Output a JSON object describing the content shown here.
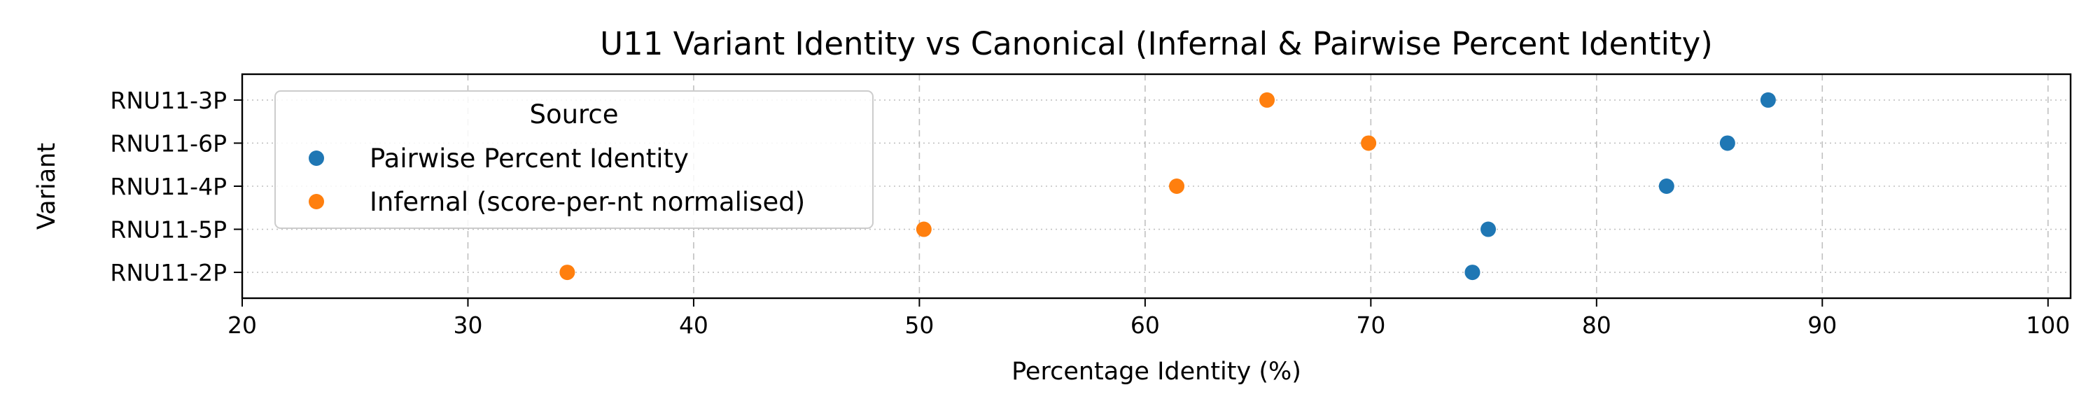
{
  "chart_data": {
    "type": "scatter",
    "title": "U11 Variant Identity vs Canonical (Infernal & Pairwise Percent Identity)",
    "xlabel": "Percentage Identity (%)",
    "ylabel": "Variant",
    "xlim": [
      20,
      101
    ],
    "xticks": [
      20,
      30,
      40,
      50,
      60,
      70,
      80,
      90,
      100
    ],
    "categories": [
      "RNU11-3P",
      "RNU11-6P",
      "RNU11-4P",
      "RNU11-5P",
      "RNU11-2P"
    ],
    "series": [
      {
        "name": "Pairwise Percent Identity",
        "color": "#1f77b4",
        "values": [
          87.6,
          85.8,
          83.1,
          75.2,
          74.5
        ]
      },
      {
        "name": "Infernal (score-per-nt normalised)",
        "color": "#ff7f0e",
        "values": [
          65.4,
          69.9,
          61.4,
          50.2,
          34.4
        ]
      }
    ],
    "legend": {
      "title": "Source",
      "position": "upper-left"
    },
    "grid": {
      "x": "dashed",
      "y": "dotted"
    }
  }
}
